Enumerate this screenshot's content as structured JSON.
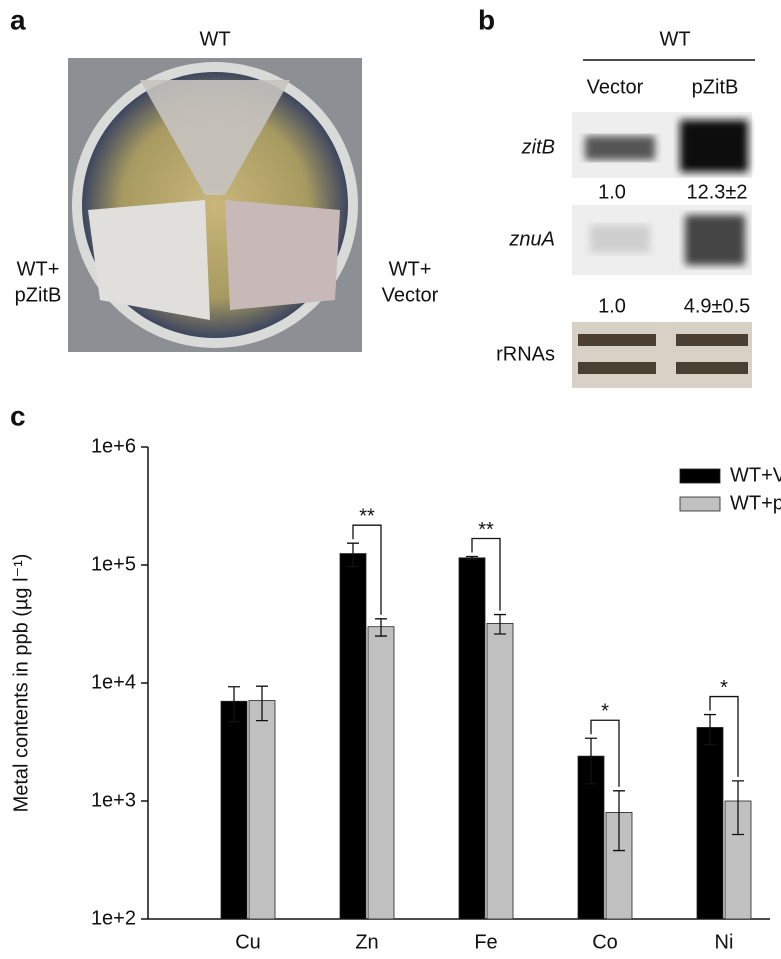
{
  "panels": {
    "a": {
      "letter": "a",
      "top_label": "WT",
      "left_label": [
        "WT+",
        "pZitB"
      ],
      "right_label": [
        "WT+",
        "Vector"
      ]
    },
    "b": {
      "letter": "b",
      "group": "WT",
      "columns": [
        "Vector",
        "pZitB"
      ],
      "rows": [
        {
          "label": "zitB",
          "values": [
            "1.0",
            "12.3±2"
          ]
        },
        {
          "label": "znuA",
          "values": [
            "1.0",
            "4.9±0.5"
          ]
        },
        {
          "label": "rRNAs"
        }
      ]
    },
    "c": {
      "letter": "c"
    }
  },
  "chart_data": {
    "type": "bar",
    "ylabel": "Metal contents in ppb (µg l⁻¹)",
    "log_scale": true,
    "categories": [
      "Cu",
      "Zn",
      "Fe",
      "Co",
      "Ni"
    ],
    "series": [
      {
        "name": "WT+Vector",
        "color": "#000000",
        "values": [
          7000,
          125000,
          115000,
          2400,
          4200
        ],
        "errors": [
          2300,
          28000,
          3000,
          1000,
          1200
        ]
      },
      {
        "name": "WT+pZitB",
        "color": "#c0c0c0",
        "values": [
          7100,
          30000,
          32000,
          800,
          1000
        ],
        "errors": [
          2300,
          5000,
          6000,
          420,
          480
        ]
      }
    ],
    "ylim": [
      100,
      1000000
    ],
    "yticks": [
      {
        "value": 100,
        "label": "1e+2"
      },
      {
        "value": 1000,
        "label": "1e+3"
      },
      {
        "value": 10000,
        "label": "1e+4"
      },
      {
        "value": 100000,
        "label": "1e+5"
      },
      {
        "value": 1000000,
        "label": "1e+6"
      }
    ],
    "annotations": [
      {
        "text": "**",
        "category": "Zn"
      },
      {
        "text": "**",
        "category": "Fe"
      },
      {
        "text": "*",
        "category": "Co"
      },
      {
        "text": "*",
        "category": "Ni"
      }
    ],
    "legend": "upper right"
  }
}
